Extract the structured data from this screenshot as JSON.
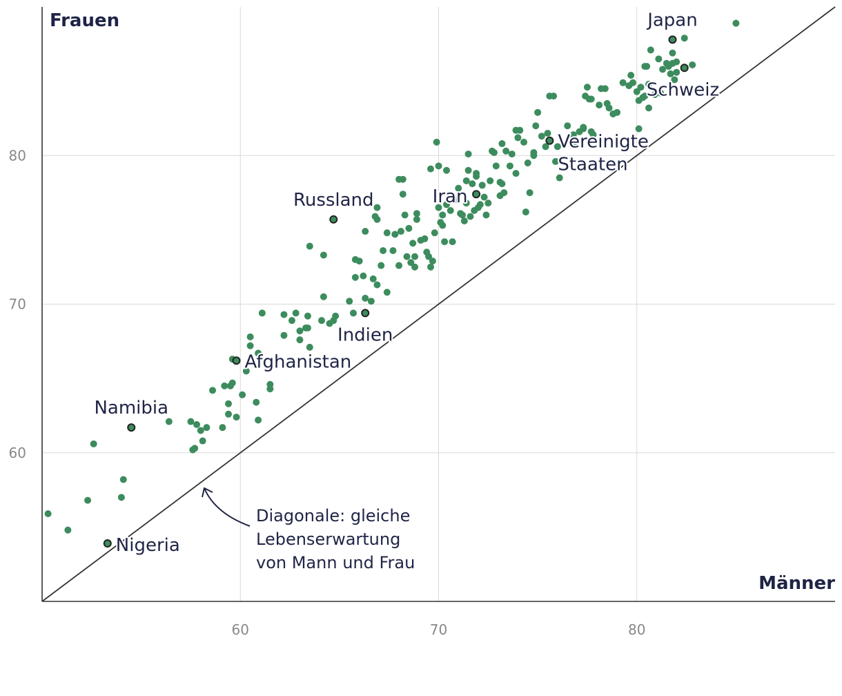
{
  "chart_data": {
    "type": "scatter",
    "title": "",
    "xlabel": "Männer",
    "ylabel": "Frauen",
    "xlim": [
      50,
      90
    ],
    "ylim": [
      50,
      90
    ],
    "xticks": [
      60,
      70,
      80
    ],
    "yticks": [
      60,
      70,
      80
    ],
    "grid": true,
    "diagonal_annotation": [
      "Diagonale: gleiche",
      "Lebenserwartung",
      "von Mann und Frau"
    ],
    "highlighted": [
      {
        "name": "Japan",
        "x": 81.8,
        "y": 87.8
      },
      {
        "name": "Schweiz",
        "x": 82.4,
        "y": 85.9
      },
      {
        "name": "Vereinigte Staaten",
        "label_lines": [
          "Vereinigte",
          "Staaten"
        ],
        "x": 75.6,
        "y": 81.0
      },
      {
        "name": "Russland",
        "x": 64.7,
        "y": 75.7
      },
      {
        "name": "Iran",
        "x": 71.9,
        "y": 77.4
      },
      {
        "name": "Indien",
        "x": 66.3,
        "y": 69.4
      },
      {
        "name": "Afghanistan",
        "x": 59.8,
        "y": 66.2
      },
      {
        "name": "Namibia",
        "x": 54.5,
        "y": 61.7
      },
      {
        "name": "Nigeria",
        "x": 53.3,
        "y": 53.9
      }
    ],
    "points": [
      [
        50.3,
        55.9
      ],
      [
        51.3,
        54.8
      ],
      [
        52.3,
        56.8
      ],
      [
        52.6,
        60.6
      ],
      [
        54.0,
        57.0
      ],
      [
        54.1,
        58.2
      ],
      [
        56.4,
        62.1
      ],
      [
        57.5,
        62.1
      ],
      [
        57.6,
        60.2
      ],
      [
        57.7,
        60.3
      ],
      [
        57.8,
        61.9
      ],
      [
        58.0,
        61.5
      ],
      [
        58.1,
        60.8
      ],
      [
        58.3,
        61.7
      ],
      [
        58.6,
        64.2
      ],
      [
        59.1,
        61.7
      ],
      [
        59.2,
        64.5
      ],
      [
        59.4,
        62.6
      ],
      [
        59.4,
        63.3
      ],
      [
        59.5,
        64.5
      ],
      [
        59.6,
        64.7
      ],
      [
        59.6,
        66.3
      ],
      [
        59.8,
        62.4
      ],
      [
        60.1,
        63.9
      ],
      [
        60.3,
        65.5
      ],
      [
        60.5,
        67.2
      ],
      [
        60.5,
        67.8
      ],
      [
        60.8,
        63.4
      ],
      [
        60.9,
        62.2
      ],
      [
        60.9,
        66.7
      ],
      [
        61.1,
        69.4
      ],
      [
        61.5,
        64.3
      ],
      [
        61.5,
        64.6
      ],
      [
        62.2,
        67.9
      ],
      [
        62.2,
        69.3
      ],
      [
        62.6,
        68.9
      ],
      [
        62.8,
        69.4
      ],
      [
        63.0,
        67.6
      ],
      [
        63.0,
        68.2
      ],
      [
        63.3,
        68.4
      ],
      [
        63.4,
        68.4
      ],
      [
        63.4,
        69.2
      ],
      [
        63.5,
        67.1
      ],
      [
        63.5,
        73.9
      ],
      [
        64.1,
        68.9
      ],
      [
        64.2,
        73.3
      ],
      [
        64.2,
        70.5
      ],
      [
        64.5,
        68.7
      ],
      [
        64.7,
        68.9
      ],
      [
        64.8,
        69.2
      ],
      [
        65.5,
        70.2
      ],
      [
        65.7,
        69.4
      ],
      [
        65.8,
        71.8
      ],
      [
        65.8,
        73.0
      ],
      [
        66.0,
        72.9
      ],
      [
        66.2,
        71.9
      ],
      [
        66.3,
        74.9
      ],
      [
        66.3,
        70.4
      ],
      [
        66.6,
        70.2
      ],
      [
        66.7,
        71.7
      ],
      [
        66.8,
        75.9
      ],
      [
        66.9,
        71.3
      ],
      [
        66.9,
        75.7
      ],
      [
        66.9,
        76.5
      ],
      [
        67.1,
        72.6
      ],
      [
        67.2,
        73.6
      ],
      [
        67.4,
        74.8
      ],
      [
        67.4,
        70.8
      ],
      [
        67.7,
        73.6
      ],
      [
        67.8,
        74.7
      ],
      [
        68.0,
        72.6
      ],
      [
        68.0,
        78.4
      ],
      [
        68.1,
        74.9
      ],
      [
        68.2,
        77.4
      ],
      [
        68.2,
        78.4
      ],
      [
        68.3,
        76.0
      ],
      [
        68.4,
        73.2
      ],
      [
        68.5,
        75.1
      ],
      [
        68.6,
        72.8
      ],
      [
        68.7,
        74.1
      ],
      [
        68.8,
        72.5
      ],
      [
        68.8,
        73.2
      ],
      [
        68.9,
        75.7
      ],
      [
        68.9,
        76.1
      ],
      [
        69.1,
        74.3
      ],
      [
        69.3,
        74.4
      ],
      [
        69.4,
        73.5
      ],
      [
        69.5,
        73.2
      ],
      [
        69.6,
        72.5
      ],
      [
        69.7,
        72.9
      ],
      [
        69.6,
        79.1
      ],
      [
        69.8,
        74.8
      ],
      [
        69.9,
        80.9
      ],
      [
        70.0,
        76.5
      ],
      [
        70.0,
        79.3
      ],
      [
        70.1,
        75.5
      ],
      [
        70.2,
        75.3
      ],
      [
        70.2,
        76.0
      ],
      [
        70.3,
        74.2
      ],
      [
        70.4,
        76.7
      ],
      [
        70.4,
        79.0
      ],
      [
        70.6,
        76.3
      ],
      [
        70.7,
        74.2
      ],
      [
        70.8,
        77.0
      ],
      [
        71.0,
        77.8
      ],
      [
        71.1,
        76.1
      ],
      [
        71.2,
        76.0
      ],
      [
        71.3,
        75.6
      ],
      [
        71.4,
        76.8
      ],
      [
        71.4,
        78.3
      ],
      [
        71.5,
        79.0
      ],
      [
        71.5,
        80.1
      ],
      [
        71.6,
        75.9
      ],
      [
        71.7,
        78.1
      ],
      [
        71.8,
        76.3
      ],
      [
        71.9,
        78.6
      ],
      [
        71.9,
        78.8
      ],
      [
        72.0,
        76.5
      ],
      [
        72.1,
        76.7
      ],
      [
        72.2,
        78.0
      ],
      [
        72.3,
        77.2
      ],
      [
        72.4,
        76.0
      ],
      [
        72.5,
        76.8
      ],
      [
        72.6,
        78.3
      ],
      [
        72.7,
        80.3
      ],
      [
        72.8,
        80.2
      ],
      [
        72.9,
        79.3
      ],
      [
        73.1,
        77.3
      ],
      [
        73.1,
        78.2
      ],
      [
        73.2,
        78.1
      ],
      [
        73.2,
        80.8
      ],
      [
        73.3,
        77.5
      ],
      [
        73.4,
        80.3
      ],
      [
        73.6,
        79.3
      ],
      [
        73.7,
        80.1
      ],
      [
        73.9,
        78.8
      ],
      [
        73.9,
        81.7
      ],
      [
        74.0,
        81.2
      ],
      [
        74.1,
        81.7
      ],
      [
        74.3,
        80.9
      ],
      [
        74.4,
        76.2
      ],
      [
        74.5,
        79.5
      ],
      [
        74.6,
        77.5
      ],
      [
        74.8,
        80.2
      ],
      [
        74.8,
        80.0
      ],
      [
        74.9,
        82.0
      ],
      [
        75.0,
        82.9
      ],
      [
        75.2,
        81.3
      ],
      [
        75.4,
        80.6
      ],
      [
        75.5,
        81.5
      ],
      [
        75.6,
        84.0
      ],
      [
        75.8,
        84.0
      ],
      [
        75.9,
        79.6
      ],
      [
        76.0,
        80.6
      ],
      [
        76.1,
        78.5
      ],
      [
        76.5,
        82.0
      ],
      [
        76.6,
        81.2
      ],
      [
        76.8,
        81.4
      ],
      [
        76.9,
        80.7
      ],
      [
        77.1,
        81.6
      ],
      [
        77.3,
        81.8
      ],
      [
        77.3,
        81.9
      ],
      [
        77.4,
        84.0
      ],
      [
        77.5,
        84.6
      ],
      [
        77.6,
        83.8
      ],
      [
        77.7,
        83.8
      ],
      [
        77.7,
        81.6
      ],
      [
        77.8,
        81.4
      ],
      [
        78.1,
        83.4
      ],
      [
        78.2,
        84.5
      ],
      [
        78.4,
        84.5
      ],
      [
        78.5,
        83.5
      ],
      [
        78.6,
        83.2
      ],
      [
        78.8,
        82.8
      ],
      [
        79.0,
        82.9
      ],
      [
        79.3,
        84.9
      ],
      [
        79.6,
        84.7
      ],
      [
        79.7,
        85.4
      ],
      [
        79.8,
        84.9
      ],
      [
        80.0,
        84.3
      ],
      [
        80.1,
        81.8
      ],
      [
        80.1,
        83.7
      ],
      [
        80.2,
        84.6
      ],
      [
        80.3,
        83.9
      ],
      [
        80.4,
        86.0
      ],
      [
        80.4,
        84.0
      ],
      [
        80.5,
        86.0
      ],
      [
        80.6,
        84.8
      ],
      [
        80.6,
        83.2
      ],
      [
        80.7,
        87.1
      ],
      [
        80.9,
        84.1
      ],
      [
        81.1,
        86.5
      ],
      [
        81.2,
        84.2
      ],
      [
        81.3,
        85.8
      ],
      [
        81.5,
        86.2
      ],
      [
        81.6,
        86.0
      ],
      [
        81.7,
        85.5
      ],
      [
        81.8,
        86.2
      ],
      [
        81.8,
        86.9
      ],
      [
        81.9,
        85.1
      ],
      [
        82.0,
        85.6
      ],
      [
        82.0,
        86.3
      ],
      [
        82.4,
        87.9
      ],
      [
        82.8,
        86.1
      ],
      [
        85.0,
        88.9
      ]
    ]
  }
}
